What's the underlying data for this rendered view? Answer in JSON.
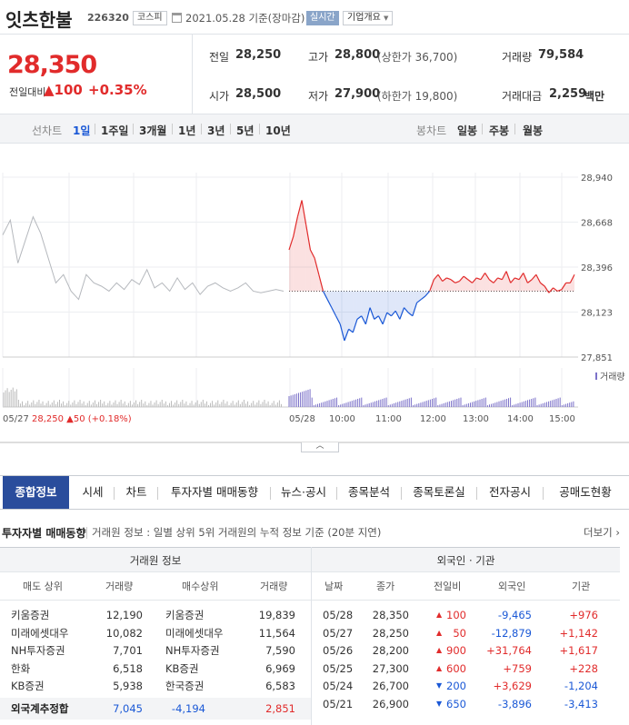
{
  "header": {
    "stock_name": "잇츠한불",
    "stock_code": "226320",
    "market": "코스피",
    "date_text": "2021.05.28 기준(장마감)",
    "realtime": "실시간",
    "company_info": "기업개요"
  },
  "summary": {
    "price": "28,350",
    "change_label": "전일대비",
    "change_arrow": "▲",
    "change_value": "100",
    "change_pct": "+0.35%",
    "prev_close_label": "전일",
    "prev_close": "28,250",
    "high_label": "고가",
    "high": "28,800",
    "upper_limit": "(상한가 36,700)",
    "volume_label": "거래량",
    "volume": "79,584",
    "open_label": "시가",
    "open": "28,500",
    "low_label": "저가",
    "low": "27,900",
    "lower_limit": "(하한가 19,800)",
    "amount_label": "거래대금",
    "amount": "2,259",
    "amount_unit": "백만"
  },
  "period": {
    "line_label": "선차트",
    "line_items": [
      "1일",
      "1주일",
      "3개월",
      "1년",
      "3년",
      "5년",
      "10년"
    ],
    "candle_label": "봉차트",
    "candle_items": [
      "일봉",
      "주봉",
      "월봉"
    ]
  },
  "chart_data": {
    "type": "line",
    "y_ticks": [
      "28,940",
      "28,668",
      "28,396",
      "28,123",
      "27,851"
    ],
    "ylim": [
      27851,
      28940
    ],
    "baseline": 28250,
    "x_ticks": [
      "05/28",
      "10:00",
      "11:00",
      "12:00",
      "13:00",
      "14:00",
      "15:00"
    ],
    "prev_day_label": "05/27",
    "prev_close": "28,250",
    "prev_change": "▲50",
    "prev_pct": "(+0.18%)",
    "volume_legend": "거래량",
    "prev_day_prices": [
      28590,
      28680,
      28420,
      28560,
      28700,
      28600,
      28450,
      28300,
      28350,
      28250,
      28200,
      28350,
      28300,
      28280,
      28250,
      28300,
      28260,
      28320,
      28290,
      28380,
      28270,
      28300,
      28250,
      28330,
      28260,
      28300,
      28230,
      28280,
      28300,
      28270,
      28250,
      28270,
      28300,
      28250,
      28240,
      28250,
      28260,
      28250
    ],
    "today_prices": [
      28500,
      28580,
      28700,
      28800,
      28650,
      28500,
      28450,
      28350,
      28250,
      28200,
      28150,
      28100,
      28050,
      27950,
      28020,
      28000,
      28080,
      28100,
      28050,
      28150,
      28080,
      28100,
      28050,
      28120,
      28100,
      28130,
      28080,
      28150,
      28120,
      28100,
      28180,
      28200,
      28220,
      28250,
      28320,
      28350,
      28310,
      28330,
      28320,
      28300,
      28310,
      28340,
      28320,
      28300,
      28330,
      28320,
      28360,
      28320,
      28300,
      28330,
      28320,
      28370,
      28300,
      28330,
      28320,
      28360,
      28300,
      28320,
      28350,
      28300,
      28280,
      28240,
      28270,
      28250,
      28260,
      28300,
      28300,
      28350
    ]
  },
  "tabs": [
    "종합정보",
    "시세",
    "차트",
    "투자자별 매매동향",
    "뉴스·공시",
    "종목분석",
    "종목토론실",
    "전자공시",
    "공매도현황"
  ],
  "section": {
    "title": "투자자별 매매동향",
    "desc": "거래원 정보 : 일별 상위 5위 거래원의 누적 정보 기준 (20분 지연)",
    "more": "더보기"
  },
  "broker_table": {
    "title": "거래원 정보",
    "headers": [
      "매도 상위",
      "거래량",
      "매수상위",
      "거래량"
    ],
    "rows": [
      [
        "키움증권",
        "12,190",
        "키움증권",
        "19,839"
      ],
      [
        "미래에셋대우",
        "10,082",
        "미래에셋대우",
        "11,564"
      ],
      [
        "NH투자증권",
        "7,701",
        "NH투자증권",
        "7,590"
      ],
      [
        "한화",
        "6,518",
        "KB증권",
        "6,969"
      ],
      [
        "KB증권",
        "5,938",
        "한국증권",
        "6,583"
      ]
    ],
    "total": [
      "외국계추정합",
      "7,045",
      "-4,194",
      "2,851"
    ]
  },
  "foreign_table": {
    "title": "외국인 · 기관",
    "headers": [
      "날짜",
      "종가",
      "전일비",
      "외국인",
      "기관"
    ],
    "rows": [
      [
        "05/28",
        "28,350",
        "▲",
        "100",
        "-9,465",
        "+976"
      ],
      [
        "05/27",
        "28,250",
        "▲",
        "50",
        "-12,879",
        "+1,142"
      ],
      [
        "05/26",
        "28,200",
        "▲",
        "900",
        "+31,764",
        "+1,617"
      ],
      [
        "05/25",
        "27,300",
        "▲",
        "600",
        "+759",
        "+228"
      ],
      [
        "05/24",
        "26,700",
        "▼",
        "200",
        "+3,629",
        "-1,204"
      ],
      [
        "05/21",
        "26,900",
        "▼",
        "650",
        "-3,896",
        "-3,413"
      ]
    ]
  },
  "colors": {
    "up": "#e12b2b",
    "down": "#1a58d6",
    "accent": "#2a4d9c"
  }
}
